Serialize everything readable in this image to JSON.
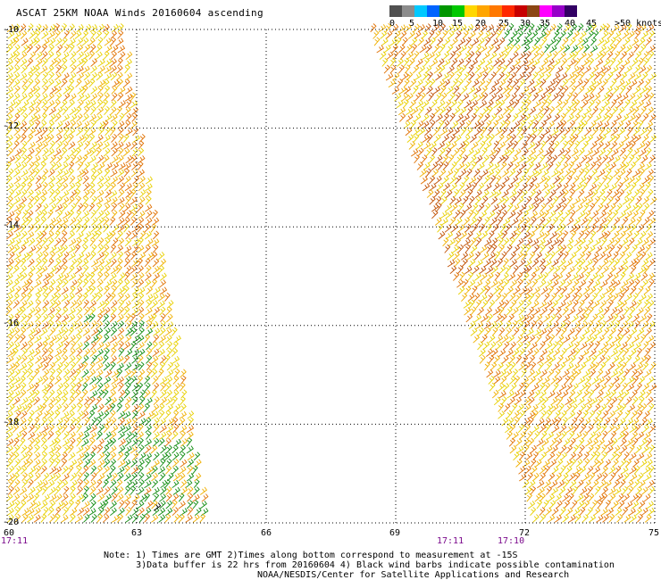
{
  "header": {
    "title": "ASCAT 25KM NOAA Winds 20160604 ascending"
  },
  "legend": {
    "unit": ">50 knots",
    "ticks": [
      "0",
      "5",
      "10",
      "15",
      "20",
      "25",
      "30",
      "35",
      "40",
      "45"
    ],
    "colors": [
      "#505050",
      "#8c8c8c",
      "#00c8ff",
      "#0064ff",
      "#009600",
      "#00c800",
      "#ffd700",
      "#ffa500",
      "#ff7800",
      "#ff2800",
      "#c80000",
      "#8b4513",
      "#ff00ff",
      "#9600c8",
      "#320064"
    ]
  },
  "map": {
    "lon_labels": [
      "60",
      "63",
      "66",
      "69",
      "72",
      "75"
    ],
    "lat_labels": [
      "-10",
      "-12",
      "-14",
      "-16",
      "-18",
      "-20"
    ],
    "lon_range": [
      60,
      75
    ],
    "lat_range": [
      -20,
      -10
    ],
    "grid": "dotted",
    "swath_colors": {
      "yellow": "#e8d000",
      "gold": "#f0b000",
      "orange": "#e07000",
      "brown": "#c05000",
      "green": "#108c10",
      "black": "#000000"
    }
  },
  "time_labels": {
    "bottom_left": "17:11",
    "bottom_mid_1": "17:11",
    "bottom_mid_2": "17:10"
  },
  "footer": {
    "note_line1": "Note: 1) Times are GMT 2)Times along bottom correspond to measurement at -15S",
    "note_line2": "      3)Data buffer is 22 hrs from 20160604 4) Black wind barbs indicate possible contamination",
    "credit": "NOAA/NESDIS/Center for Satellite Applications and Research"
  }
}
